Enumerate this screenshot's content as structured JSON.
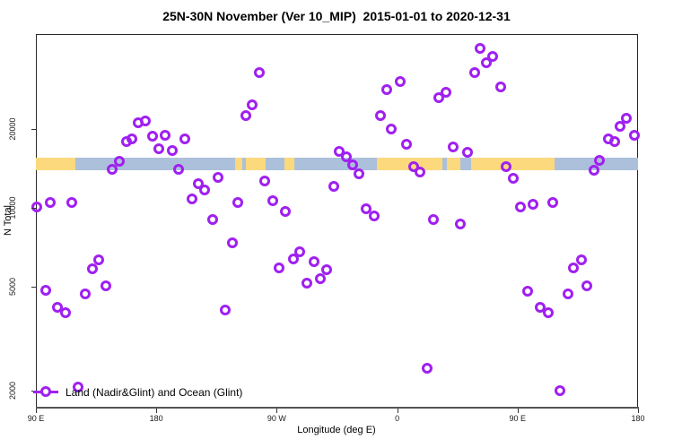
{
  "title": "25N-30N November (Ver 10_MIP)  2015-01-01 to 2020-12-31",
  "colors": {
    "marker": "#A020F0",
    "land": "#FBD97C",
    "ocean": "#ACC0DB",
    "axis": "#555555",
    "text": "#000000"
  },
  "legend": {
    "label": "Land (Nadir&Glint) and Ocean (Glint)"
  },
  "chart_data": {
    "type": "scatter",
    "title": "25N-30N November (Ver 10_MIP)  2015-01-01 to 2020-12-31",
    "xlabel": "Longitude (deg E)",
    "ylabel": "N Total",
    "xlim": [
      90,
      540
    ],
    "ylim": [
      1722,
      46100
    ],
    "yscale": "log",
    "grid": false,
    "legend_position": "bottom-left",
    "x_ticks": [
      {
        "value": 90,
        "label": "90 E"
      },
      {
        "value": 180,
        "label": "180"
      },
      {
        "value": 270,
        "label": "90 W"
      },
      {
        "value": 360,
        "label": "0"
      },
      {
        "value": 450,
        "label": "90 E"
      },
      {
        "value": 540,
        "label": "180"
      }
    ],
    "y_ticks": [
      {
        "value": 2000,
        "label": "2000"
      },
      {
        "value": 5000,
        "label": "5000"
      },
      {
        "value": 10000,
        "label": "10000"
      },
      {
        "value": 20000,
        "label": "20000"
      }
    ],
    "map_band": {
      "description": "world land/ocean strip for 25N-30N drawn across the plot",
      "n_top": 15550,
      "n_bottom": 13900,
      "segments": [
        {
          "from": 90,
          "to": 119.5,
          "type": "land"
        },
        {
          "from": 119.5,
          "to": 239,
          "type": "ocean"
        },
        {
          "from": 239,
          "to": 244.5,
          "type": "land"
        },
        {
          "from": 244.5,
          "to": 247,
          "type": "ocean"
        },
        {
          "from": 247,
          "to": 262,
          "type": "land"
        },
        {
          "from": 262,
          "to": 276,
          "type": "ocean"
        },
        {
          "from": 276,
          "to": 283,
          "type": "land"
        },
        {
          "from": 283,
          "to": 345,
          "type": "ocean"
        },
        {
          "from": 345,
          "to": 393.8,
          "type": "land"
        },
        {
          "from": 393.8,
          "to": 397.2,
          "type": "ocean"
        },
        {
          "from": 397.2,
          "to": 407.2,
          "type": "land"
        },
        {
          "from": 407.2,
          "to": 415.3,
          "type": "ocean"
        },
        {
          "from": 415.3,
          "to": 477.7,
          "type": "land"
        },
        {
          "from": 477.7,
          "to": 540,
          "type": "ocean"
        }
      ]
    },
    "series": [
      {
        "name": "Land (Nadir&Glint) and Ocean (Glint)",
        "marker": "open-circle",
        "color": "#A020F0",
        "points": [
          [
            166.5,
            21100
          ],
          [
            171.9,
            21500
          ],
          [
            157.8,
            17900
          ],
          [
            161.8,
            18300
          ],
          [
            177.2,
            18800
          ],
          [
            186.6,
            18900
          ],
          [
            201.4,
            18300
          ],
          [
            181.9,
            16800
          ],
          [
            192.0,
            16600
          ],
          [
            152.4,
            15100
          ],
          [
            147.0,
            14000
          ],
          [
            196.7,
            14000
          ],
          [
            211.4,
            12400
          ],
          [
            216.1,
            11700
          ],
          [
            226.2,
            13100
          ],
          [
            206.7,
            10800
          ],
          [
            100.7,
            10500
          ],
          [
            90.7,
            10100
          ],
          [
            116.8,
            10500
          ],
          [
            222.1,
            9000
          ],
          [
            257.0,
            32900
          ],
          [
            362.3,
            30400
          ],
          [
            352.3,
            28300
          ],
          [
            251.7,
            24800
          ],
          [
            247.0,
            22500
          ],
          [
            347.6,
            22500
          ],
          [
            355.6,
            20000
          ],
          [
            367.0,
            17500
          ],
          [
            316.7,
            16400
          ],
          [
            322.1,
            15700
          ],
          [
            326.8,
            14600
          ],
          [
            331.5,
            13500
          ],
          [
            372.4,
            14300
          ],
          [
            377.1,
            13700
          ],
          [
            261.0,
            12700
          ],
          [
            312.7,
            12100
          ],
          [
            240.9,
            10500
          ],
          [
            267.1,
            10600
          ],
          [
            276.5,
            9700
          ],
          [
            336.8,
            9900
          ],
          [
            342.9,
            9300
          ],
          [
            387.2,
            9000
          ],
          [
            422.0,
            40600
          ],
          [
            431.4,
            37800
          ],
          [
            426.7,
            35800
          ],
          [
            418.0,
            32900
          ],
          [
            437.4,
            29000
          ],
          [
            396.6,
            27600
          ],
          [
            391.2,
            26400
          ],
          [
            531.4,
            22000
          ],
          [
            526.7,
            20500
          ],
          [
            537.4,
            18900
          ],
          [
            518.0,
            18300
          ],
          [
            522.7,
            17900
          ],
          [
            401.9,
            17100
          ],
          [
            412.7,
            16300
          ],
          [
            511.3,
            15200
          ],
          [
            507.3,
            13900
          ],
          [
            441.5,
            14400
          ],
          [
            446.9,
            13000
          ],
          [
            452.2,
            10100
          ],
          [
            461.6,
            10300
          ],
          [
            476.4,
            10500
          ],
          [
            236.9,
            7350
          ],
          [
            137.0,
            6330
          ],
          [
            132.3,
            5850
          ],
          [
            97.4,
            4840
          ],
          [
            142.3,
            5030
          ],
          [
            126.9,
            4690
          ],
          [
            106.1,
            4170
          ],
          [
            112.1,
            3970
          ],
          [
            231.5,
            4060
          ],
          [
            121.5,
            2070
          ],
          [
            287.2,
            6790
          ],
          [
            282.5,
            6370
          ],
          [
            297.9,
            6220
          ],
          [
            271.8,
            5890
          ],
          [
            307.3,
            5790
          ],
          [
            292.5,
            5150
          ],
          [
            302.6,
            5360
          ],
          [
            382.5,
            2440
          ],
          [
            407.3,
            8670
          ],
          [
            497.9,
            6330
          ],
          [
            491.8,
            5890
          ],
          [
            501.9,
            5030
          ],
          [
            457.6,
            4800
          ],
          [
            487.8,
            4690
          ],
          [
            467.0,
            4170
          ],
          [
            473.0,
            3970
          ],
          [
            481.7,
            2000
          ]
        ]
      }
    ]
  }
}
